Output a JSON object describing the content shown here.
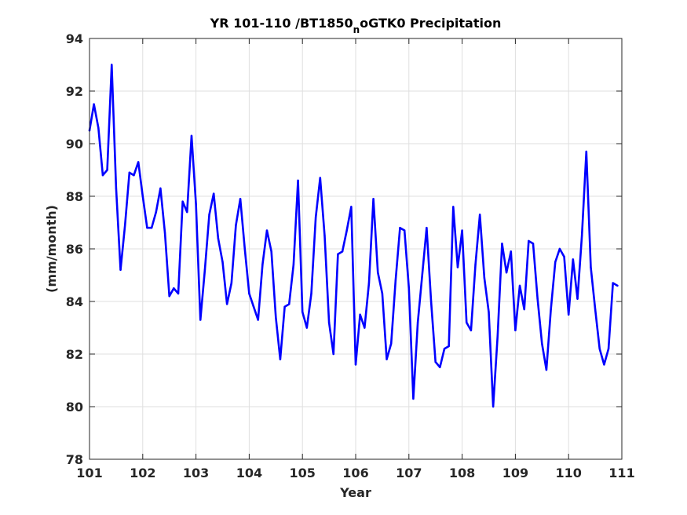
{
  "chart_data": {
    "type": "line",
    "title": {
      "before_subscript": "YR 101-110 /BT1850",
      "subscript": "n",
      "after_subscript": "oGTK0 Precipitation"
    },
    "xlabel": "Year",
    "ylabel": "(mm/month)",
    "xlim": [
      101,
      111
    ],
    "ylim": [
      78,
      94
    ],
    "xticks": [
      101,
      102,
      103,
      104,
      105,
      106,
      107,
      108,
      109,
      110,
      111
    ],
    "yticks": [
      78,
      80,
      82,
      84,
      86,
      88,
      90,
      92,
      94
    ],
    "grid": true,
    "line_color": "#0000ff",
    "series": [
      {
        "x": [
          101.0,
          101.083,
          101.167,
          101.25,
          101.333,
          101.417,
          101.5,
          101.583,
          101.667,
          101.75,
          101.833,
          101.917,
          102.0,
          102.083,
          102.167,
          102.25,
          102.333,
          102.417,
          102.5,
          102.583,
          102.667,
          102.75,
          102.833,
          102.917,
          103.0,
          103.083,
          103.167,
          103.25,
          103.333,
          103.417,
          103.5,
          103.583,
          103.667,
          103.75,
          103.833,
          103.917,
          104.0,
          104.083,
          104.167,
          104.25,
          104.333,
          104.417,
          104.5,
          104.583,
          104.667,
          104.75,
          104.833,
          104.917,
          105.0,
          105.083,
          105.167,
          105.25,
          105.333,
          105.417,
          105.5,
          105.583,
          105.667,
          105.75,
          105.833,
          105.917,
          106.0,
          106.083,
          106.167,
          106.25,
          106.333,
          106.417,
          106.5,
          106.583,
          106.667,
          106.75,
          106.833,
          106.917,
          107.0,
          107.083,
          107.167,
          107.25,
          107.333,
          107.417,
          107.5,
          107.583,
          107.667,
          107.75,
          107.833,
          107.917,
          108.0,
          108.083,
          108.167,
          108.25,
          108.333,
          108.417,
          108.5,
          108.583,
          108.667,
          108.75,
          108.833,
          108.917,
          109.0,
          109.083,
          109.167,
          109.25,
          109.333,
          109.417,
          109.5,
          109.583,
          109.667,
          109.75,
          109.833,
          109.917,
          110.0,
          110.083,
          110.167,
          110.25,
          110.333,
          110.417,
          110.5,
          110.583,
          110.667,
          110.75,
          110.833,
          110.917
        ],
        "y": [
          90.5,
          91.5,
          90.6,
          88.8,
          89.0,
          93.0,
          88.3,
          85.2,
          86.9,
          88.9,
          88.8,
          89.3,
          88.0,
          86.8,
          86.8,
          87.4,
          88.3,
          86.6,
          84.2,
          84.5,
          84.3,
          87.8,
          87.4,
          90.3,
          87.7,
          83.3,
          85.2,
          87.3,
          88.1,
          86.4,
          85.5,
          83.9,
          84.7,
          86.9,
          87.9,
          86.0,
          84.3,
          83.8,
          83.3,
          85.4,
          86.7,
          85.9,
          83.4,
          81.8,
          83.8,
          83.9,
          85.4,
          88.6,
          83.6,
          83.0,
          84.3,
          87.2,
          88.7,
          86.5,
          83.2,
          82.0,
          85.8,
          85.9,
          86.7,
          87.6,
          81.6,
          83.5,
          83.0,
          84.7,
          87.9,
          85.1,
          84.3,
          81.8,
          82.4,
          84.8,
          86.8,
          86.7,
          84.5,
          80.3,
          83.2,
          85.0,
          86.8,
          84.0,
          81.7,
          81.5,
          82.2,
          82.3,
          87.6,
          85.3,
          86.7,
          83.2,
          82.9,
          85.4,
          87.3,
          84.9,
          83.6,
          80.0,
          82.7,
          86.2,
          85.1,
          85.9,
          82.9,
          84.6,
          83.7,
          86.3,
          86.2,
          84.1,
          82.4,
          81.4,
          83.7,
          85.5,
          86.0,
          85.7,
          83.5,
          85.6,
          84.1,
          86.5,
          89.7,
          85.3,
          83.7,
          82.2,
          81.6,
          82.2,
          84.7,
          84.6
        ]
      }
    ]
  }
}
